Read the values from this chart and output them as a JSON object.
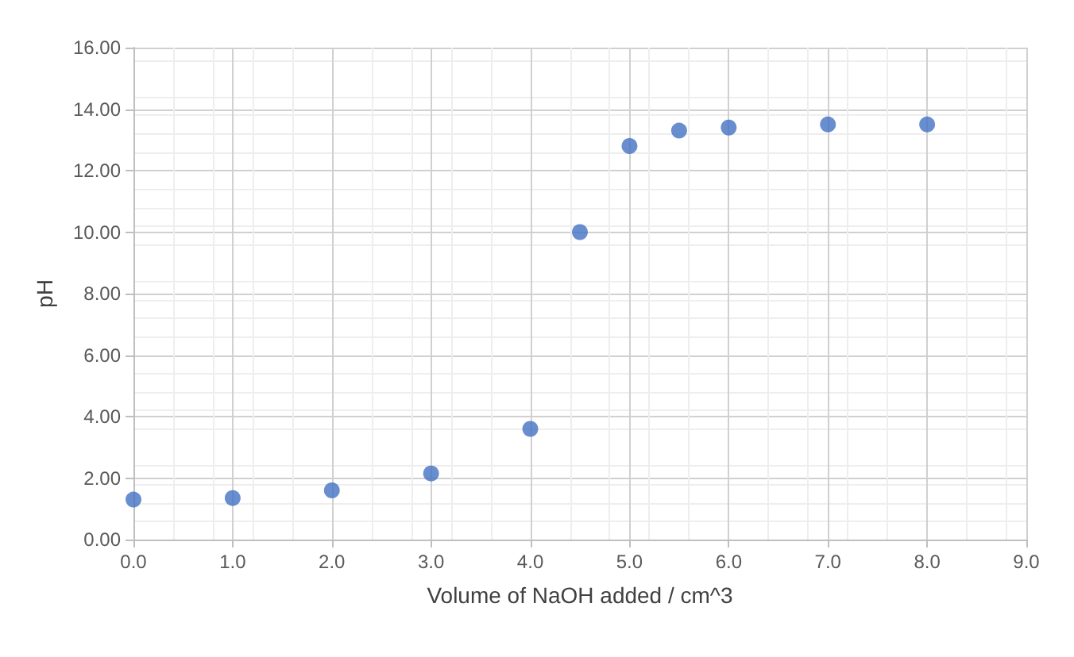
{
  "chart_data": {
    "type": "scatter",
    "xlabel": "Volume of NaOH added / cm^3",
    "ylabel": "pH",
    "x": [
      0,
      1,
      2,
      3,
      4,
      4.5,
      5,
      5.5,
      6,
      7,
      8
    ],
    "series": [
      {
        "color": "#4472c4",
        "values": [
          1.3,
          1.35,
          1.6,
          2.15,
          3.6,
          10.0,
          12.8,
          13.3,
          13.4,
          13.5,
          13.5
        ]
      }
    ],
    "xlim": [
      0,
      9
    ],
    "xticks": [
      {
        "value": 0,
        "label": "0.0"
      },
      {
        "value": 1,
        "label": "1.0"
      },
      {
        "value": 2,
        "label": "2.0"
      },
      {
        "value": 3,
        "label": "3.0"
      },
      {
        "value": 4,
        "label": "4.0"
      },
      {
        "value": 5,
        "label": "5.0"
      },
      {
        "value": 6,
        "label": "6.0"
      },
      {
        "value": 7,
        "label": "7.0"
      },
      {
        "value": 8,
        "label": "8.0"
      },
      {
        "value": 9,
        "label": "9.0"
      }
    ],
    "ylim": [
      0,
      16
    ],
    "yticks": [
      {
        "value": 0,
        "label": "0.00"
      },
      {
        "value": 2,
        "label": "2.00"
      },
      {
        "value": 4,
        "label": "4.00"
      },
      {
        "value": 6,
        "label": "6.00"
      },
      {
        "value": 8,
        "label": "8.00"
      },
      {
        "value": 10,
        "label": "10.00"
      },
      {
        "value": 12,
        "label": "12.00"
      },
      {
        "value": 14,
        "label": "14.00"
      },
      {
        "value": 16,
        "label": "16.00"
      }
    ],
    "grid": true,
    "marker": "circle"
  }
}
